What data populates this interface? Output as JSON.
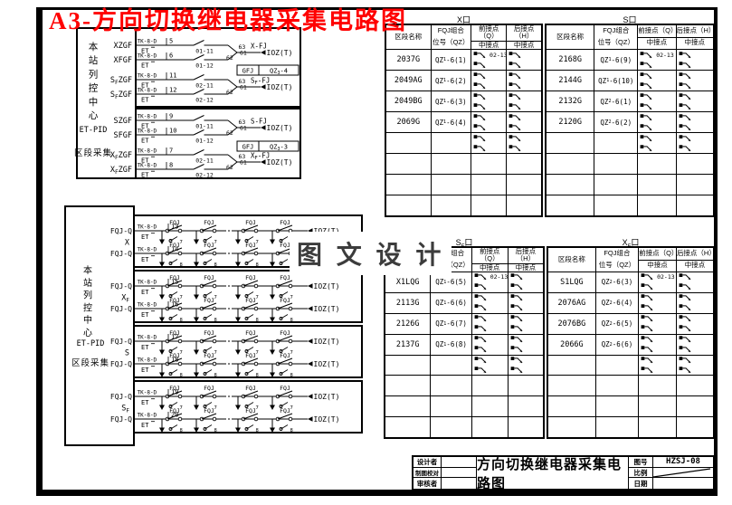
{
  "title": "A3-方向切换继电器采集电路图",
  "watermark": "图 文 设 计",
  "colors": {
    "title": "#ff0000",
    "ink": "#000000",
    "watermark": "#3c3c3c"
  },
  "upper_circuit": {
    "station_label": "本站列控中心",
    "sub_label1": "ET-PID",
    "sub_label2": "区段采集",
    "terminal": "TK-8-D",
    "et": "ET",
    "out": "IOZ(T)",
    "node_pins": [
      "63",
      "61",
      "62"
    ],
    "boxes": [
      {
        "tag": [
          "GFJ",
          "QZ_{3}-4"
        ],
        "groups": [
          {
            "relay": "X-FJ",
            "rows": [
              {
                "signal": "XZGF",
                "pin": "5",
                "contact": "01-11"
              },
              {
                "signal": "XFGF",
                "pin": "6",
                "contact": "01-12"
              }
            ]
          },
          {
            "relay": "S_{F}-FJ",
            "rows": [
              {
                "signal": "S_{F}ZGF",
                "pin": "11",
                "contact": "02-11"
              },
              {
                "signal": "S_{F}ZGF",
                "pin": "12",
                "contact": "02-12"
              }
            ]
          }
        ]
      },
      {
        "tag": [
          "GFJ",
          "QZ_{3}-3"
        ],
        "groups": [
          {
            "relay": "S-FJ",
            "rows": [
              {
                "signal": "SZGF",
                "pin": "9",
                "contact": "01-11"
              },
              {
                "signal": "SFGF",
                "pin": "10",
                "contact": "01-12"
              }
            ]
          },
          {
            "relay": "X_{F}-FJ",
            "rows": [
              {
                "signal": "X_{F}ZGF",
                "pin": "7",
                "contact": "02-11"
              },
              {
                "signal": "X_{F}ZGF",
                "pin": "8",
                "contact": "02-12"
              }
            ]
          }
        ]
      }
    ]
  },
  "lower_circuit": {
    "station_label": "本站列控中心",
    "sub_label1": "ET-PID",
    "sub_label2": "区段采集",
    "terminal": "TK-8-D",
    "et": "ET",
    "out": "IOZ(T)",
    "contact_label": "FQJ",
    "signal": "FQJ-Q",
    "groups": [
      {
        "dir": "X",
        "pins": [
          "13",
          "14"
        ],
        "branch_pins": [
          "7",
          "8"
        ]
      },
      {
        "dir": "X_{F}",
        "pins": [
          "15",
          "16"
        ],
        "branch_pins": [
          "7",
          "8"
        ]
      },
      {
        "dir": "S",
        "pins": [
          "17",
          "18"
        ],
        "branch_pins": [
          "7",
          "8"
        ]
      },
      {
        "dir": "S_{F}",
        "pins": [
          "19",
          "20"
        ],
        "branch_pins": [
          "7",
          "8"
        ]
      }
    ]
  },
  "tables": {
    "headers": {
      "c1": "区段名称",
      "c2a": "FQJ组合",
      "c2b": "位号（QZ）",
      "c3a": "前接点（Q）",
      "c3b": "中接点",
      "c4a": "后接点（H）",
      "c4b": "中接点"
    },
    "first_contact_label": "02-13",
    "list": [
      {
        "caption": "X口",
        "rows": [
          {
            "name": "2037G",
            "pos": "QZ_{1}-6(1)"
          },
          {
            "name": "2049AG",
            "pos": "QZ_{1}-6(2)"
          },
          {
            "name": "2049BG",
            "pos": "QZ_{1}-6(3)"
          },
          {
            "name": "2069G",
            "pos": "QZ_{1}-6(4)"
          }
        ]
      },
      {
        "caption": "S口",
        "rows": [
          {
            "name": "2168G",
            "pos": "QZ_{1}-6(9)"
          },
          {
            "name": "2144G",
            "pos": "QZ_{1}-6(10)"
          },
          {
            "name": "2132G",
            "pos": "QZ_{2}-6(1)"
          },
          {
            "name": "2120G",
            "pos": "QZ_{2}-6(2)"
          }
        ]
      },
      {
        "caption": "S_{F}口",
        "rows": [
          {
            "name": "X1LQG",
            "pos": "QZ_{1}-6(5)"
          },
          {
            "name": "2113G",
            "pos": "QZ_{1}-6(6)"
          },
          {
            "name": "2126G",
            "pos": "QZ_{1}-6(7)"
          },
          {
            "name": "2137G",
            "pos": "QZ_{1}-6(8)"
          }
        ]
      },
      {
        "caption": "X_{F}口",
        "rows": [
          {
            "name": "S1LQG",
            "pos": "QZ_{2}-6(3)"
          },
          {
            "name": "2076AG",
            "pos": "QZ_{2}-6(4)"
          },
          {
            "name": "2076BG",
            "pos": "QZ_{2}-6(5)"
          },
          {
            "name": "2066G",
            "pos": "QZ_{2}-6(6)"
          }
        ]
      }
    ]
  },
  "title_block": {
    "left_labels": [
      "设计者",
      "制图校对",
      "审核者"
    ],
    "drawing_title": "方向切换继电器采集电路图",
    "right_labels": [
      "图号",
      "比例",
      "日期"
    ],
    "drawing_no": "HZSJ-08"
  }
}
